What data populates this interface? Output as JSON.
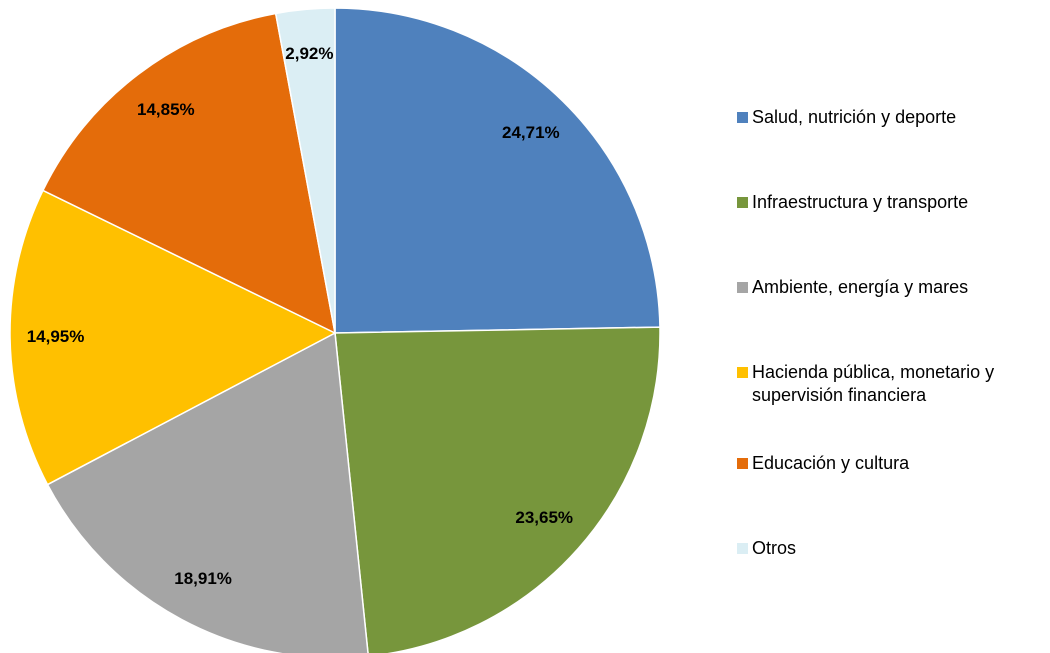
{
  "chart_data": {
    "type": "pie",
    "categories": [
      "Salud, nutrición y deporte",
      "Infraestructura y transporte",
      "Ambiente, energía y mares",
      "Hacienda pública, monetario y supervisión financiera",
      "Educación y cultura",
      "Otros"
    ],
    "values": [
      24.71,
      23.65,
      18.91,
      14.95,
      14.85,
      2.92
    ],
    "value_labels": [
      "24,71%",
      "23,65%",
      "18,91%",
      "14,95%",
      "14,85%",
      "2,92%"
    ],
    "colors": [
      "#4f81bd",
      "#77963c",
      "#a5a5a5",
      "#ffc000",
      "#e46c0a",
      "#dbeef4"
    ],
    "legend": "right"
  }
}
